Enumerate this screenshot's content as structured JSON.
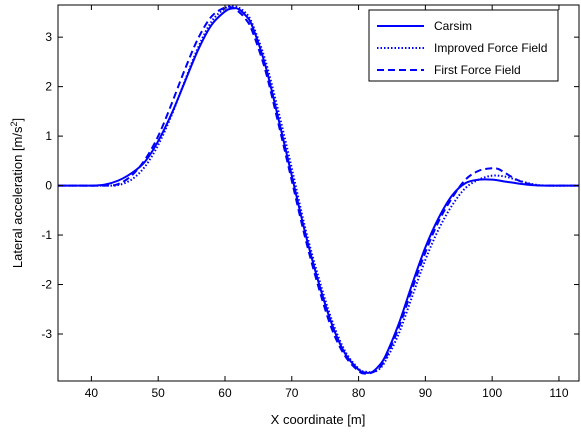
{
  "chart_data": {
    "type": "line",
    "xlabel": "X coordinate [m]",
    "ylabel_main": "Lateral acceleration [m/s",
    "ylabel_sup": "2",
    "ylabel_end": "]",
    "xlim": [
      35,
      113
    ],
    "ylim": [
      -3.95,
      3.65
    ],
    "xticks": [
      40,
      50,
      60,
      70,
      80,
      90,
      100,
      110
    ],
    "yticks": [
      -3,
      -2,
      -1,
      0,
      1,
      2,
      3
    ],
    "grid": false,
    "legend_position": "top-right",
    "series": [
      {
        "name": "Carsim",
        "color": "#0000ff",
        "style": "solid",
        "x": [
          35,
          40,
          42,
          44,
          46,
          48,
          50,
          52,
          54,
          56,
          58,
          60,
          61,
          62,
          63,
          64,
          66,
          68,
          70,
          72,
          74,
          76,
          78,
          80,
          81,
          82,
          83,
          84,
          86,
          88,
          90,
          92,
          94,
          96,
          98,
          100,
          102,
          104,
          106,
          108,
          113
        ],
        "y": [
          0,
          0,
          0.02,
          0.1,
          0.25,
          0.48,
          0.9,
          1.45,
          2.1,
          2.75,
          3.25,
          3.52,
          3.58,
          3.57,
          3.45,
          3.25,
          2.45,
          1.35,
          0.2,
          -0.95,
          -1.95,
          -2.8,
          -3.4,
          -3.72,
          -3.78,
          -3.77,
          -3.65,
          -3.45,
          -2.8,
          -2.0,
          -1.25,
          -0.65,
          -0.2,
          0.05,
          0.12,
          0.12,
          0.08,
          0.04,
          0.01,
          0,
          0
        ]
      },
      {
        "name": "Improved Force Field",
        "color": "#0000ff",
        "style": "dotted",
        "x": [
          35,
          42,
          44,
          46,
          48,
          50,
          52,
          54,
          56,
          58,
          60,
          61,
          62,
          63,
          64,
          66,
          68,
          70,
          72,
          74,
          76,
          78,
          80,
          81,
          82,
          83,
          84,
          86,
          88,
          90,
          92,
          94,
          96,
          98,
          100,
          102,
          104,
          106,
          108,
          113
        ],
        "y": [
          0,
          0,
          0.01,
          0.12,
          0.38,
          0.82,
          1.42,
          2.12,
          2.8,
          3.32,
          3.58,
          3.62,
          3.6,
          3.5,
          3.3,
          2.55,
          1.5,
          0.35,
          -0.85,
          -1.85,
          -2.72,
          -3.35,
          -3.7,
          -3.76,
          -3.77,
          -3.72,
          -3.55,
          -3.0,
          -2.25,
          -1.5,
          -0.88,
          -0.4,
          -0.05,
          0.12,
          0.2,
          0.18,
          0.1,
          0.03,
          0,
          0
        ]
      },
      {
        "name": "First Force Field",
        "color": "#0000ff",
        "style": "dashed",
        "x": [
          35,
          42,
          44,
          46,
          48,
          50,
          52,
          54,
          56,
          58,
          60,
          61,
          62,
          63,
          64,
          66,
          68,
          70,
          72,
          74,
          76,
          78,
          80,
          81,
          82,
          83,
          84,
          86,
          88,
          90,
          92,
          94,
          96,
          98,
          100,
          101,
          102,
          104,
          106,
          108,
          113
        ],
        "y": [
          0,
          0,
          0.03,
          0.2,
          0.52,
          1.0,
          1.65,
          2.35,
          2.98,
          3.42,
          3.6,
          3.6,
          3.52,
          3.38,
          3.15,
          2.35,
          1.25,
          0.1,
          -1.05,
          -2.05,
          -2.9,
          -3.45,
          -3.75,
          -3.8,
          -3.78,
          -3.7,
          -3.5,
          -2.88,
          -2.1,
          -1.35,
          -0.72,
          -0.25,
          0.12,
          0.3,
          0.35,
          0.33,
          0.25,
          0.1,
          0.02,
          0,
          0
        ]
      }
    ]
  }
}
